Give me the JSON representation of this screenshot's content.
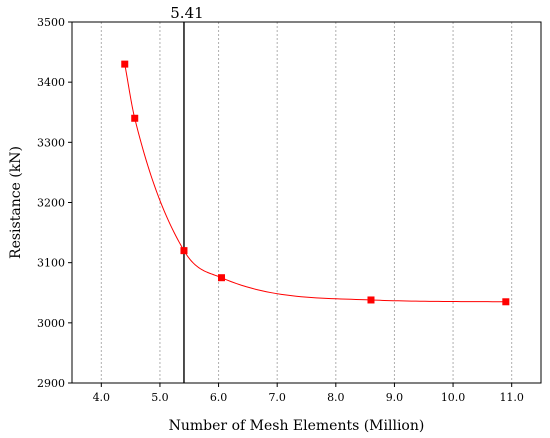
{
  "chart_data": {
    "type": "scatter",
    "xlabel": "Number of Mesh Elements (Million)",
    "ylabel": "Resistance (kN)",
    "xlim": [
      3.5,
      11.5
    ],
    "ylim": [
      2900,
      3500
    ],
    "x_ticks": [
      4.0,
      5.0,
      6.0,
      7.0,
      8.0,
      9.0,
      10.0,
      11.0
    ],
    "x_tick_labels": [
      "4.0",
      "5.0",
      "6.0",
      "7.0",
      "8.0",
      "9.0",
      "10.0",
      "11.0"
    ],
    "y_ticks": [
      2900,
      3000,
      3100,
      3200,
      3300,
      3400,
      3500
    ],
    "y_tick_labels": [
      "2900",
      "3000",
      "3100",
      "3200",
      "3300",
      "3400",
      "3500"
    ],
    "grid": "vertical-dotted",
    "series": [
      {
        "color": "#ff0000",
        "marker": "square",
        "line": "smooth",
        "x": [
          4.4,
          4.57,
          5.41,
          6.05,
          8.6,
          10.9
        ],
        "y": [
          3430,
          3340,
          3120,
          3075,
          3038,
          3035
        ]
      }
    ],
    "annotations": [
      {
        "type": "vline",
        "x": 5.41,
        "label": "5.41",
        "color": "#000000"
      }
    ]
  }
}
